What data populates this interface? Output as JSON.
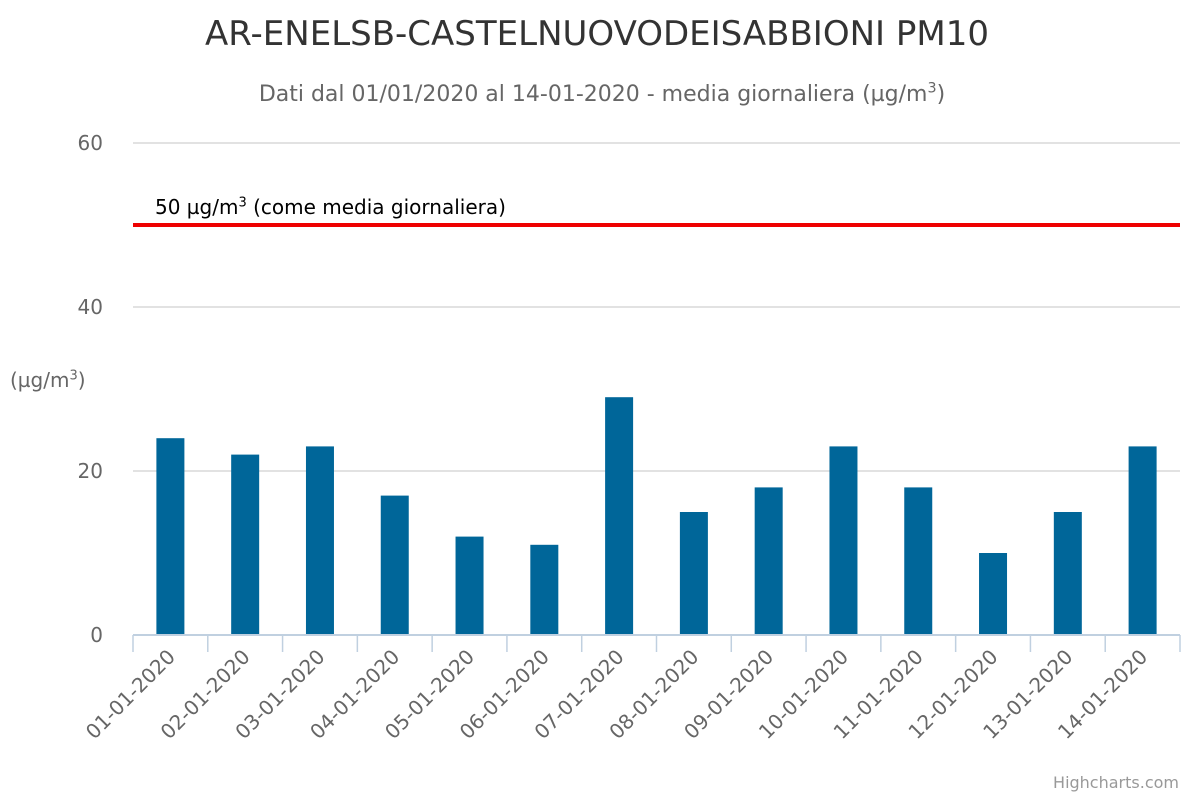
{
  "chart_data": {
    "type": "bar",
    "title": "AR-ENELSB-CASTELNUOVODEISABBIONI PM10",
    "subtitle_text": "Dati dal 01/01/2020 al 14-01-2020 - media giornaliera (µg/m",
    "subtitle_sup": "3",
    "subtitle_end": ")",
    "ylabel_text": "(µg/m",
    "ylabel_sup": "3",
    "ylabel_end": ")",
    "categories": [
      "01-01-2020",
      "02-01-2020",
      "03-01-2020",
      "04-01-2020",
      "05-01-2020",
      "06-01-2020",
      "07-01-2020",
      "08-01-2020",
      "09-01-2020",
      "10-01-2020",
      "11-01-2020",
      "12-01-2020",
      "13-01-2020",
      "14-01-2020"
    ],
    "series": [
      {
        "values": [
          24,
          22,
          23,
          17,
          12,
          11,
          29,
          15,
          18,
          23,
          18,
          10,
          15,
          23
        ],
        "color": "#006699"
      }
    ],
    "ylim": [
      0,
      60
    ],
    "yticks": [
      0,
      20,
      40,
      60
    ],
    "grid": true,
    "threshold": {
      "value": 50,
      "color": "#ee0000",
      "label_text": "50 µg/m",
      "label_sup": "3",
      "label_end": " (come media giornaliera)"
    }
  },
  "credits": "Highcharts.com"
}
